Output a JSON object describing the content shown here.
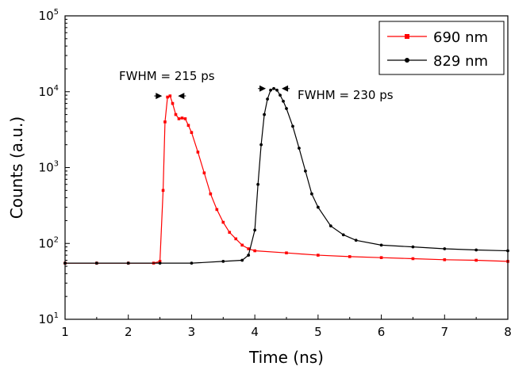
{
  "chart_data": {
    "type": "scatter",
    "xlabel": "Time (ns)",
    "ylabel": "Counts (a.u.)",
    "xlim": [
      1,
      8
    ],
    "ylim": [
      10,
      100000
    ],
    "yscale": "log",
    "grid": false,
    "legend_position": "top-right",
    "x_ticks": [
      {
        "value": 1,
        "label": "1"
      },
      {
        "value": 2,
        "label": "2"
      },
      {
        "value": 3,
        "label": "3"
      },
      {
        "value": 4,
        "label": "4"
      },
      {
        "value": 5,
        "label": "5"
      },
      {
        "value": 6,
        "label": "6"
      },
      {
        "value": 7,
        "label": "7"
      },
      {
        "value": 8,
        "label": "8"
      }
    ],
    "y_ticks": [
      {
        "value": 10,
        "base": "10",
        "exp": "1"
      },
      {
        "value": 100,
        "base": "10",
        "exp": "2"
      },
      {
        "value": 1000,
        "base": "10",
        "exp": "3"
      },
      {
        "value": 10000,
        "base": "10",
        "exp": "4"
      },
      {
        "value": 100000,
        "base": "10",
        "exp": "5"
      }
    ],
    "series": [
      {
        "name": "690 nm",
        "color": "#ff0000",
        "marker": "square",
        "x": [
          1.0,
          1.5,
          2.0,
          2.4,
          2.5,
          2.55,
          2.58,
          2.62,
          2.66,
          2.7,
          2.75,
          2.8,
          2.85,
          2.9,
          2.95,
          3.0,
          3.1,
          3.2,
          3.3,
          3.4,
          3.5,
          3.6,
          3.7,
          3.8,
          3.9,
          4.0,
          4.5,
          5.0,
          5.5,
          6.0,
          6.5,
          7.0,
          7.5,
          8.0
        ],
        "y": [
          55,
          55,
          55,
          55,
          58,
          500,
          4000,
          8500,
          8800,
          7000,
          5000,
          4400,
          4500,
          4400,
          3600,
          2900,
          1600,
          850,
          450,
          280,
          190,
          140,
          115,
          95,
          85,
          80,
          75,
          70,
          67,
          65,
          63,
          61,
          60,
          58
        ]
      },
      {
        "name": "829 nm",
        "color": "#000000",
        "marker": "circle",
        "x": [
          1.0,
          1.5,
          2.0,
          2.5,
          3.0,
          3.5,
          3.8,
          3.9,
          4.0,
          4.05,
          4.1,
          4.15,
          4.2,
          4.25,
          4.3,
          4.35,
          4.4,
          4.45,
          4.5,
          4.6,
          4.7,
          4.8,
          4.9,
          5.0,
          5.2,
          5.4,
          5.6,
          6.0,
          6.5,
          7.0,
          7.5,
          8.0
        ],
        "y": [
          55,
          55,
          55,
          55,
          55,
          58,
          60,
          70,
          150,
          600,
          2000,
          5000,
          8000,
          10500,
          11000,
          10500,
          9000,
          7500,
          6000,
          3500,
          1800,
          900,
          450,
          300,
          170,
          130,
          110,
          95,
          90,
          85,
          82,
          80
        ]
      }
    ],
    "annotations": [
      {
        "text": "FWHM = 215 ps",
        "x": 2.66,
        "y": 8800
      },
      {
        "text": "FWHM = 230 ps",
        "x": 4.3,
        "y": 11000
      }
    ]
  }
}
